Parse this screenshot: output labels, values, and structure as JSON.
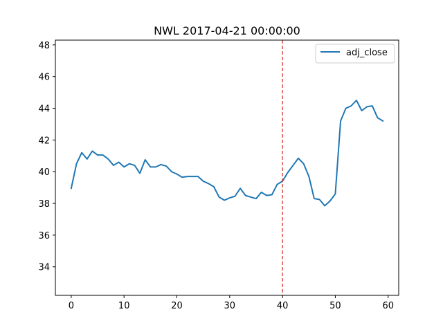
{
  "chart_data": {
    "type": "line",
    "title": "NWL 2017-04-21 00:00:00",
    "xlabel": "",
    "ylabel": "",
    "xlim": [
      -3,
      62
    ],
    "ylim": [
      32.2,
      48.3
    ],
    "xticks": [
      0,
      10,
      20,
      30,
      40,
      50,
      60
    ],
    "yticks": [
      34,
      36,
      38,
      40,
      42,
      44,
      46,
      48
    ],
    "grid": false,
    "legend_position": "top-right",
    "series": [
      {
        "name": "adj_close",
        "color": "#1f77b4",
        "x": [
          0,
          1,
          2,
          3,
          4,
          5,
          6,
          7,
          8,
          9,
          10,
          11,
          12,
          13,
          14,
          15,
          16,
          17,
          18,
          19,
          20,
          21,
          22,
          23,
          24,
          25,
          26,
          27,
          28,
          29,
          30,
          31,
          32,
          33,
          34,
          35,
          36,
          37,
          38,
          39,
          40,
          41,
          42,
          43,
          44,
          45,
          46,
          47,
          48,
          49,
          50,
          51,
          52,
          53,
          54,
          55,
          56,
          57,
          58,
          59
        ],
        "values": [
          38.95,
          40.5,
          41.2,
          40.8,
          41.3,
          41.05,
          41.05,
          40.8,
          40.4,
          40.6,
          40.3,
          40.5,
          40.4,
          39.9,
          40.75,
          40.3,
          40.3,
          40.45,
          40.35,
          40.0,
          39.85,
          39.65,
          39.7,
          39.7,
          39.7,
          39.4,
          39.25,
          39.05,
          38.4,
          38.2,
          38.35,
          38.45,
          38.95,
          38.5,
          38.4,
          38.3,
          38.7,
          38.5,
          38.55,
          39.2,
          39.4,
          39.95,
          40.4,
          40.85,
          40.5,
          39.7,
          38.3,
          38.25,
          37.85,
          38.15,
          38.6,
          43.2,
          44.0,
          44.15,
          44.5,
          43.85,
          44.1,
          44.15,
          43.4,
          43.2
        ]
      }
    ],
    "annotations": [
      {
        "type": "vline",
        "x": 40,
        "color": "#d62728",
        "style": "dashed"
      }
    ]
  }
}
